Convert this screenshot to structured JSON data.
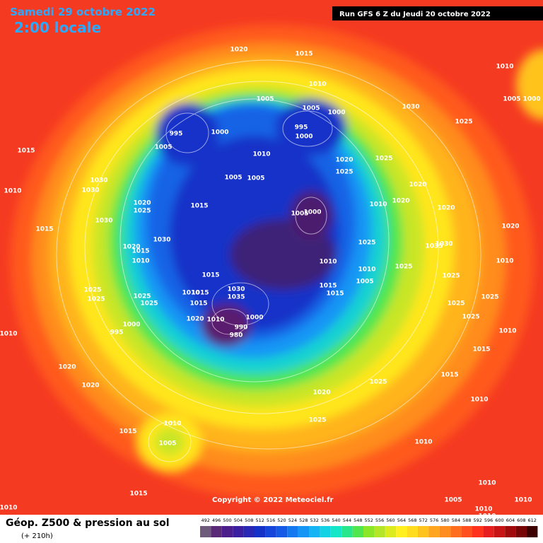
{
  "header": {
    "date": "Samedi 29 octobre 2022",
    "time": "2:00 locale",
    "run": "Run GFS 6 Z du Jeudi 20 octobre 2022"
  },
  "isobar_labels": [
    "1020",
    "1015",
    "1010",
    "1005 1000",
    "1010",
    "1005",
    "1005",
    "1000",
    "995",
    "1000",
    "995",
    "1000",
    "1030",
    "1025",
    "1015",
    "1005",
    "1010",
    "1020",
    "1025",
    "1025",
    "1030",
    "1030",
    "1005",
    "1005",
    "1010",
    "1020",
    "1020",
    "1025",
    "1015",
    "1010",
    "1020",
    "1020",
    "1005",
    "1000",
    "1030",
    "1015",
    "1030",
    "1020",
    "1020",
    "1015",
    "1025",
    "1035",
    "1030",
    "1010",
    "1010",
    "1010",
    "1010",
    "1025",
    "1015",
    "1005",
    "1015",
    "1015",
    "1025",
    "1025",
    "1025",
    "1010",
    "1015",
    "1030",
    "1035",
    "1025",
    "1025",
    "1015",
    "1025",
    "1025",
    "1000",
    "1020",
    "1010",
    "990",
    "980",
    "1000",
    "995",
    "1025",
    "1010",
    "1010",
    "1015",
    "1020",
    "1015",
    "1025",
    "1020",
    "1020",
    "1010",
    "1025",
    "1010",
    "1015",
    "1005",
    "1010",
    "1015",
    "1010",
    "1005",
    "1010",
    "1010",
    "1010",
    "1010"
  ],
  "copyright": "Copyright © 2022 Meteociel.fr",
  "footer": {
    "title": "Géop. Z500 & pression au sol",
    "lead": "(+ 210h)"
  },
  "legend": {
    "values": [
      492,
      496,
      500,
      504,
      508,
      512,
      516,
      520,
      524,
      528,
      532,
      536,
      540,
      544,
      548,
      552,
      556,
      560,
      564,
      568,
      572,
      576,
      580,
      584,
      588,
      592,
      596,
      600,
      604,
      608,
      612
    ],
    "colors": [
      "#6e5a7a",
      "#5a2a78",
      "#4b1e8c",
      "#3c1ea0",
      "#2828b4",
      "#1432c8",
      "#1446dc",
      "#145ae6",
      "#1478f0",
      "#1496f5",
      "#14b4f5",
      "#14d2e6",
      "#14e6c8",
      "#28e68c",
      "#50e650",
      "#8ce628",
      "#b4e628",
      "#dceb1e",
      "#fff01e",
      "#ffdc1e",
      "#ffc31e",
      "#ffa51e",
      "#ff8c1e",
      "#ff6e1e",
      "#ff501e",
      "#ff321e",
      "#e61e1e",
      "#c81414",
      "#a00a0a",
      "#780505",
      "#3c0000"
    ]
  }
}
